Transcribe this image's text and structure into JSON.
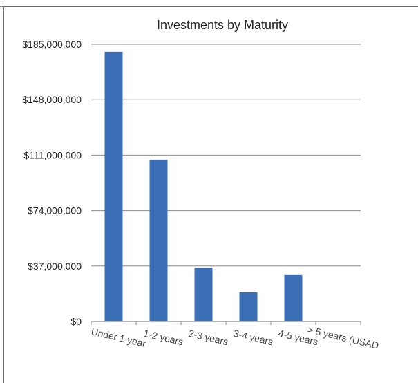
{
  "chart_data": {
    "type": "bar",
    "title": "Investments by Maturity",
    "xlabel": "",
    "ylabel": "",
    "categories": [
      "Under 1 year",
      "1-2 years",
      "2-3 years",
      "3-4 years",
      "4-5 years",
      "> 5 years (USAD"
    ],
    "values": [
      180000000,
      108000000,
      36000000,
      19500000,
      31000000,
      0
    ],
    "ylim": [
      0,
      185000000
    ],
    "yticks": [
      0,
      37000000,
      74000000,
      111000000,
      148000000,
      185000000
    ],
    "ytick_labels": [
      "$0",
      "$37,000,000",
      "$74,000,000",
      "$111,000,000",
      "$148,000,000",
      "$185,000,000"
    ],
    "bar_color": "#3a6fb8",
    "grid": true,
    "legend": "none"
  }
}
